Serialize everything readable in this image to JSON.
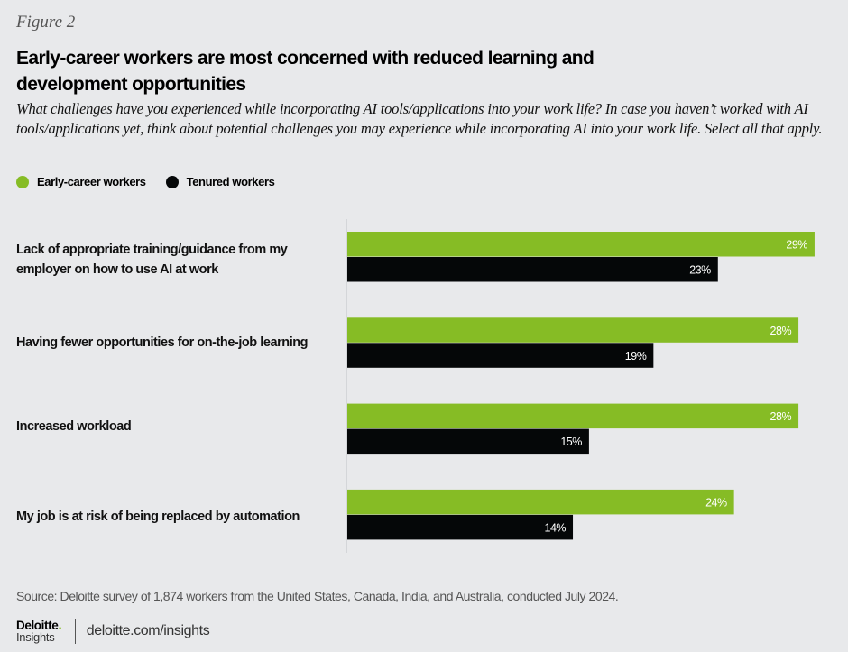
{
  "figure_label": "Figure 2",
  "title": "Early-career workers are most concerned with reduced learning and development opportunities",
  "subtitle": "What challenges have you experienced while incorporating AI tools/applications into your work life? In case you haven’t worked with AI tools/applications yet, think about potential challenges you may experience while incorporating AI into your work life. Select all that apply.",
  "colors": {
    "early_career": "#86bc25",
    "tenured": "#050708",
    "background": "#e8e9eb",
    "axis": "#d4d6d9"
  },
  "chart_data": {
    "type": "bar",
    "orientation": "horizontal",
    "title": "Early-career workers are most concerned with reduced learning and development opportunities",
    "xlabel": "",
    "ylabel": "",
    "xlim": [
      0,
      29
    ],
    "grid": false,
    "legend_position": "top-left",
    "categories": [
      "Lack of appropriate training/guidance from my employer on how to use AI at work",
      "Having fewer opportunities for on-the-job learning",
      "Increased workload",
      "My job is at risk of being replaced by automation"
    ],
    "series": [
      {
        "name": "Early-career workers",
        "values": [
          29,
          28,
          28,
          24
        ],
        "labels": [
          "29%",
          "28%",
          "28%",
          "24%"
        ]
      },
      {
        "name": "Tenured workers",
        "values": [
          23,
          19,
          15,
          14
        ],
        "labels": [
          "23%",
          "19%",
          "15%",
          "14%"
        ]
      }
    ],
    "unit": "%"
  },
  "source": "Source: Deloitte survey of 1,874 workers from the United States, Canada, India, and Australia, conducted July 2024.",
  "footer": {
    "logo_main": "Deloitte",
    "logo_dot": ".",
    "logo_sub": "Insights",
    "url": "deloitte.com/insights"
  }
}
